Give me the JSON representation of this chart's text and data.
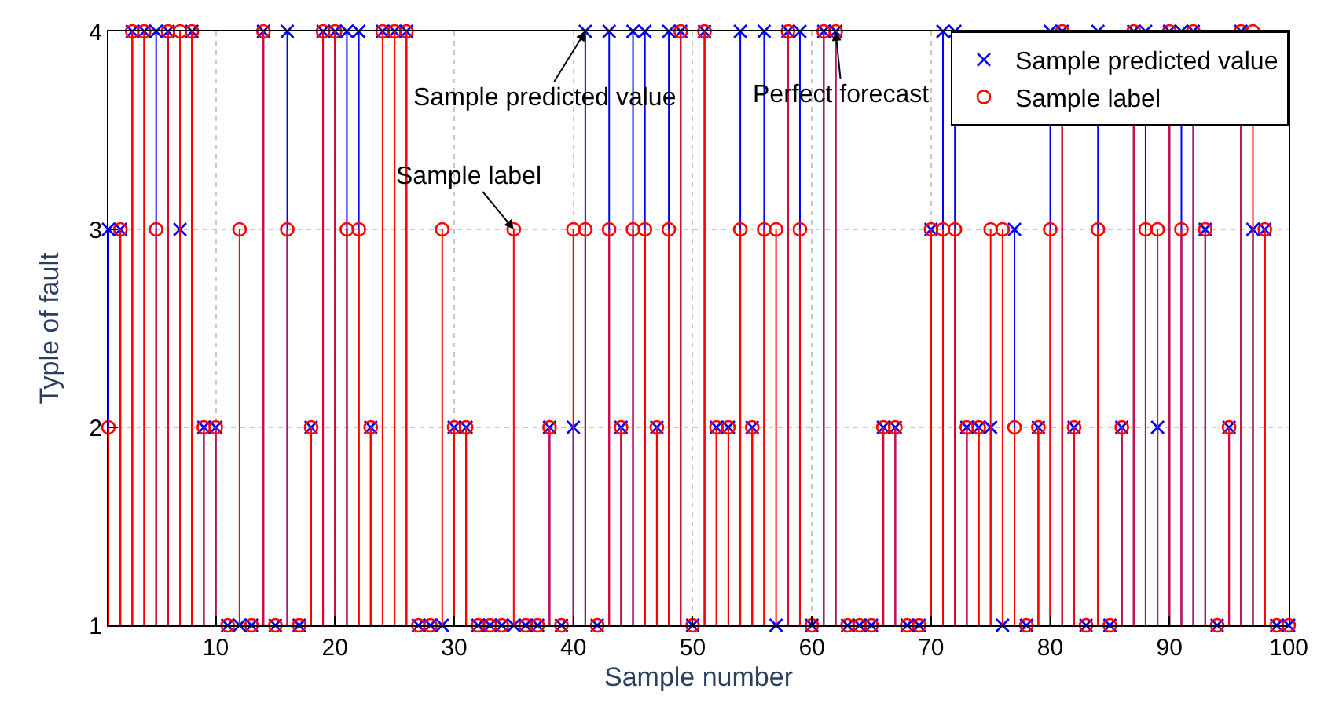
{
  "chart_data": {
    "type": "lollipop",
    "xlabel": "Sample number",
    "ylabel": "Typle of fault",
    "x": [
      1,
      2,
      3,
      4,
      5,
      6,
      7,
      8,
      9,
      10,
      11,
      12,
      13,
      14,
      15,
      16,
      17,
      18,
      19,
      20,
      21,
      22,
      23,
      24,
      25,
      26,
      27,
      28,
      29,
      30,
      31,
      32,
      33,
      34,
      35,
      36,
      37,
      38,
      39,
      40,
      41,
      42,
      43,
      44,
      45,
      46,
      47,
      48,
      49,
      50,
      51,
      52,
      53,
      54,
      55,
      56,
      57,
      58,
      59,
      60,
      61,
      62,
      63,
      64,
      65,
      66,
      67,
      68,
      69,
      70,
      71,
      72,
      73,
      74,
      75,
      76,
      77,
      78,
      79,
      80,
      81,
      82,
      83,
      84,
      85,
      86,
      87,
      88,
      89,
      90,
      91,
      92,
      93,
      94,
      95,
      96,
      97,
      98,
      99,
      100
    ],
    "xlim": [
      1,
      100
    ],
    "xticks": [
      10,
      20,
      30,
      40,
      50,
      60,
      70,
      80,
      90,
      100
    ],
    "ylim": [
      1,
      4
    ],
    "yticks": [
      1,
      2,
      3,
      4
    ],
    "grid": true,
    "legend": "top right",
    "series": [
      {
        "name": "Sample predicted value",
        "color": "#0000ff",
        "marker": "cross",
        "values": [
          3,
          3,
          4,
          4,
          4,
          4,
          3,
          4,
          2,
          2,
          1,
          1,
          1,
          4,
          1,
          4,
          1,
          2,
          4,
          4,
          4,
          4,
          2,
          4,
          4,
          4,
          1,
          1,
          1,
          2,
          2,
          1,
          1,
          1,
          1,
          1,
          1,
          2,
          1,
          2,
          4,
          1,
          4,
          2,
          4,
          4,
          2,
          4,
          4,
          1,
          4,
          2,
          2,
          4,
          2,
          4,
          1,
          4,
          4,
          1,
          4,
          4,
          1,
          1,
          1,
          2,
          2,
          1,
          1,
          3,
          4,
          4,
          2,
          2,
          2,
          1,
          3,
          1,
          2,
          4,
          4,
          2,
          1,
          4,
          1,
          2,
          4,
          4,
          2,
          4,
          4,
          4,
          3,
          1,
          2,
          4,
          3,
          3,
          1,
          1
        ]
      },
      {
        "name": "Sample label",
        "color": "#ff0000",
        "marker": "circle",
        "values": [
          2,
          3,
          4,
          4,
          3,
          4,
          4,
          4,
          2,
          2,
          1,
          3,
          1,
          4,
          1,
          3,
          1,
          2,
          4,
          4,
          3,
          3,
          2,
          4,
          4,
          4,
          1,
          1,
          3,
          2,
          2,
          1,
          1,
          1,
          3,
          1,
          1,
          2,
          1,
          3,
          3,
          1,
          3,
          2,
          3,
          3,
          2,
          3,
          4,
          1,
          4,
          2,
          2,
          3,
          2,
          3,
          3,
          4,
          3,
          1,
          4,
          4,
          1,
          1,
          1,
          2,
          2,
          1,
          1,
          3,
          3,
          3,
          2,
          2,
          3,
          3,
          2,
          1,
          2,
          3,
          4,
          2,
          1,
          3,
          1,
          2,
          4,
          3,
          3,
          4,
          3,
          4,
          3,
          1,
          2,
          4,
          4,
          3,
          1,
          1
        ]
      }
    ],
    "annotations": [
      {
        "text": "Sample predicted value",
        "x": 41,
        "y": 4
      },
      {
        "text": "Sample label",
        "x": 35,
        "y": 3
      },
      {
        "text": "Perfect forecast",
        "x": 62,
        "y": 4
      }
    ]
  }
}
